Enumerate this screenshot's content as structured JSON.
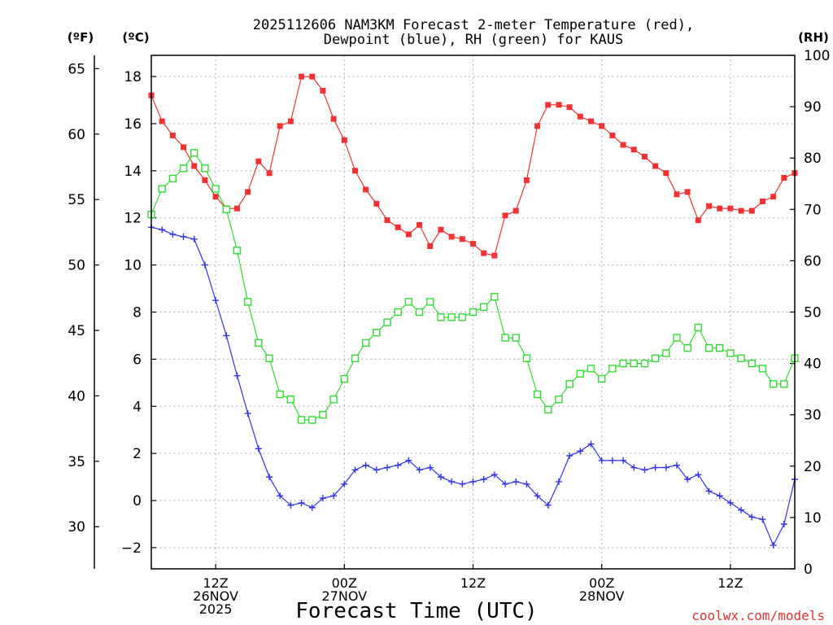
{
  "chart_data": {
    "type": "line",
    "title_line1": "2025112606 NAM3KM Forecast 2-meter Temperature (red),",
    "title_line2": "Dewpoint (blue), RH (green) for KAUS",
    "xlabel": "Forecast Time (UTC)",
    "credit": "coolwx.com/models",
    "left_outer_axis_label": "(ºF)",
    "left_inner_axis_label": "(ºC)",
    "right_axis_label": "(RH)",
    "fahrenheit_ticks": [
      "30",
      "35",
      "40",
      "45",
      "50",
      "55",
      "60",
      "65"
    ],
    "celsius_ticks": [
      "−2",
      "0",
      "2",
      "4",
      "6",
      "8",
      "10",
      "12",
      "14",
      "16",
      "18"
    ],
    "rh_ticks": [
      "0",
      "10",
      "20",
      "30",
      "40",
      "50",
      "60",
      "70",
      "80",
      "90",
      "100"
    ],
    "celsius_range": [
      -2.9,
      18.9
    ],
    "fahrenheit_range": [
      26.78,
      66.02
    ],
    "rh_range": [
      0,
      100
    ],
    "hour_range": [
      6,
      66
    ],
    "x_ticks": [
      {
        "hour": 12,
        "lines": [
          "12Z",
          "26NOV",
          "2025"
        ]
      },
      {
        "hour": 24,
        "lines": [
          "00Z",
          "27NOV"
        ]
      },
      {
        "hour": 36,
        "lines": [
          "12Z"
        ]
      },
      {
        "hour": 48,
        "lines": [
          "00Z",
          "28NOV"
        ]
      },
      {
        "hour": 60,
        "lines": [
          "12Z"
        ]
      }
    ],
    "grid": true,
    "series": [
      {
        "name": "2-meter Temperature",
        "axis": "celsius",
        "color": "#f03232",
        "marker": "filled-square",
        "values": [
          17.2,
          16.1,
          15.5,
          15.0,
          14.2,
          13.6,
          12.9,
          12.4,
          12.4,
          13.1,
          14.4,
          13.9,
          15.9,
          16.1,
          18.0,
          18.0,
          17.4,
          16.2,
          15.3,
          14.0,
          13.2,
          12.6,
          11.9,
          11.6,
          11.3,
          11.7,
          10.8,
          11.5,
          11.2,
          11.1,
          10.9,
          10.5,
          10.4,
          12.1,
          12.3,
          13.6,
          15.9,
          16.8,
          16.8,
          16.7,
          16.3,
          16.1,
          15.9,
          15.5,
          15.1,
          14.9,
          14.6,
          14.2,
          13.9,
          13.0,
          13.1,
          11.9,
          12.5,
          12.4,
          12.4,
          12.3,
          12.3,
          12.7,
          12.9,
          13.7,
          13.9
        ]
      },
      {
        "name": "Dewpoint",
        "axis": "celsius",
        "color": "#3232f0",
        "marker": "plus",
        "values": [
          11.6,
          11.5,
          11.3,
          11.2,
          11.1,
          10.0,
          8.5,
          7.0,
          5.3,
          3.7,
          2.2,
          1.0,
          0.2,
          -0.2,
          -0.1,
          -0.3,
          0.1,
          0.2,
          0.7,
          1.3,
          1.5,
          1.3,
          1.4,
          1.5,
          1.7,
          1.3,
          1.4,
          1.0,
          0.8,
          0.7,
          0.8,
          0.9,
          1.1,
          0.7,
          0.8,
          0.7,
          0.2,
          -0.2,
          0.8,
          1.9,
          2.1,
          2.4,
          1.7,
          1.7,
          1.7,
          1.4,
          1.3,
          1.4,
          1.4,
          1.5,
          0.9,
          1.1,
          0.4,
          0.2,
          -0.1,
          -0.4,
          -0.7,
          -0.8,
          -1.9,
          -1.0,
          0.9
        ]
      },
      {
        "name": "RH",
        "axis": "rh",
        "color": "#32dc32",
        "marker": "open-square",
        "values": [
          69,
          74,
          76,
          78,
          81,
          78,
          74,
          70,
          62,
          52,
          44,
          41,
          34,
          33,
          29,
          29,
          30,
          33,
          37,
          41,
          44,
          46,
          48,
          50,
          52,
          50,
          52,
          49,
          49,
          49,
          50,
          51,
          53,
          45,
          45,
          41,
          34,
          31,
          33,
          36,
          38,
          39,
          37,
          39,
          40,
          40,
          40,
          41,
          42,
          45,
          43,
          47,
          43,
          43,
          42,
          41,
          40,
          39,
          36,
          36,
          41
        ]
      }
    ]
  }
}
